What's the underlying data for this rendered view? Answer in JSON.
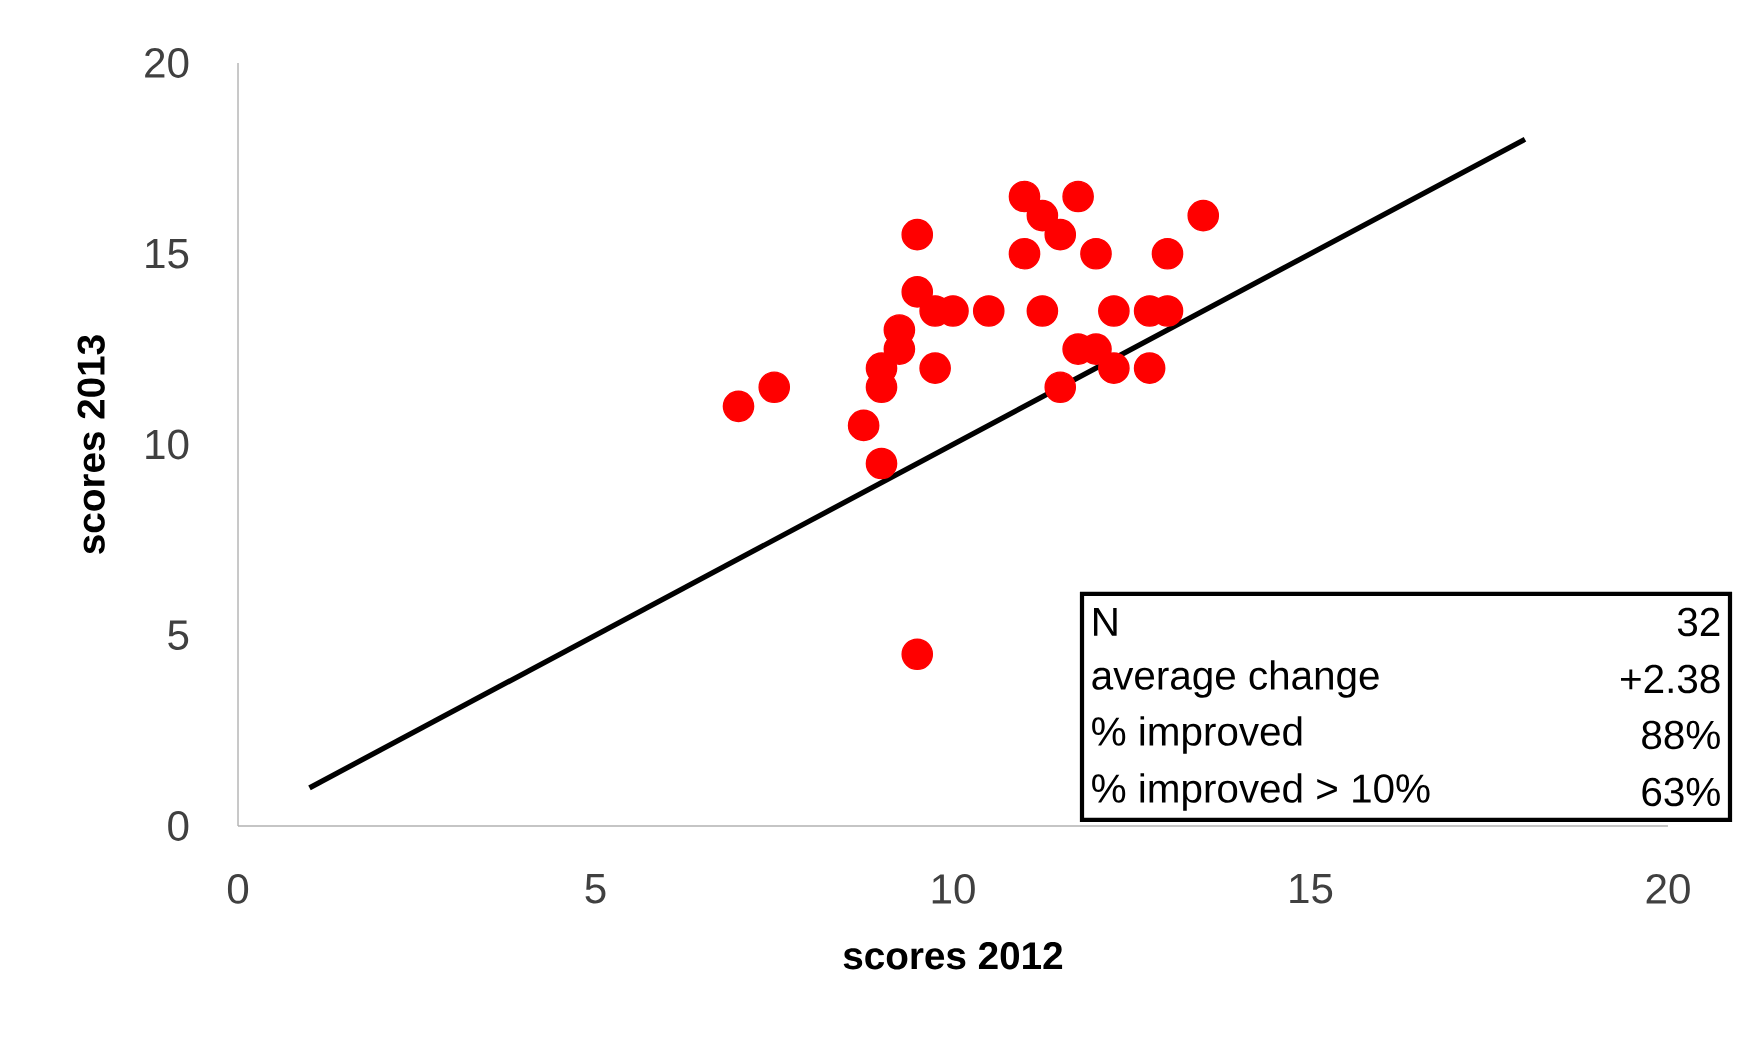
{
  "chart_data": {
    "type": "scatter",
    "xlabel": "scores 2012",
    "ylabel": "scores 2013",
    "xlim": [
      0,
      20
    ],
    "ylim": [
      0,
      20
    ],
    "xticks": [
      0,
      5,
      10,
      15,
      20
    ],
    "yticks": [
      0,
      5,
      10,
      15,
      20
    ],
    "grid": false,
    "series": [
      {
        "color": "#ff0000",
        "marker": "circle",
        "x": [
          7,
          7.5,
          8.75,
          9,
          9,
          9,
          9.25,
          9.25,
          9.5,
          9.5,
          9.5,
          9.75,
          9.75,
          10,
          10.5,
          11,
          11,
          11.25,
          11.25,
          11.5,
          11.5,
          11.75,
          11.75,
          12,
          12,
          12.25,
          12.25,
          12.75,
          12.75,
          13,
          13,
          13.5
        ],
        "values": [
          11,
          11.5,
          10.5,
          12,
          11.5,
          9.5,
          13,
          12.5,
          15.5,
          14,
          4.5,
          13.5,
          12,
          13.5,
          13.5,
          16.5,
          15,
          16,
          13.5,
          15.5,
          11.5,
          16.5,
          12.5,
          15,
          12.5,
          13.5,
          12,
          13.5,
          12,
          15,
          13.5,
          16
        ]
      },
      {
        "type": "line",
        "color": "#000000",
        "marker": "none",
        "line_style": "solid",
        "x": [
          1,
          18
        ],
        "values": [
          1,
          18
        ]
      }
    ],
    "annotations": [
      "N",
      "32",
      "average change",
      "+2.38",
      "% improved",
      "88%",
      "% improved > 10%",
      "63%"
    ]
  }
}
